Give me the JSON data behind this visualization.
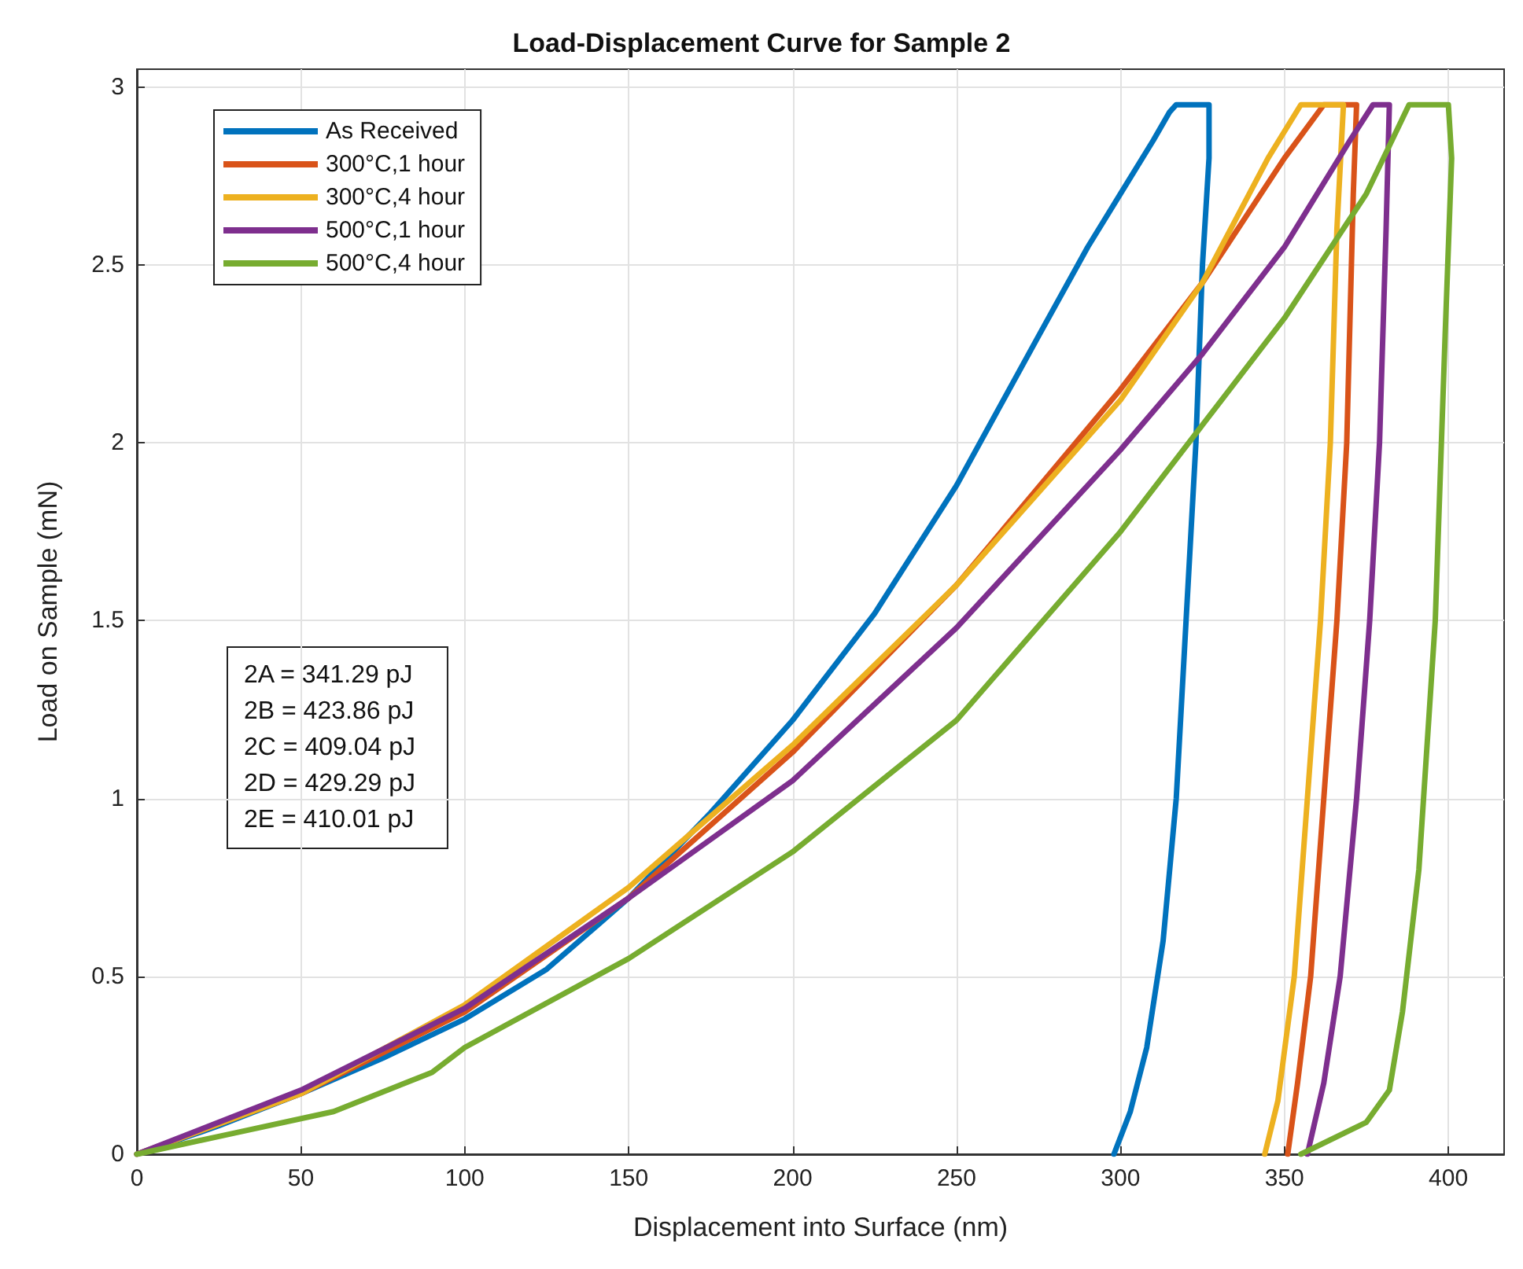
{
  "chart_data": {
    "type": "line",
    "title": "Load-Displacement Curve for Sample 2",
    "xlabel": "Displacement into Surface (nm)",
    "ylabel": "Load on Sample (mN)",
    "xlim": [
      0,
      417
    ],
    "xticks": [
      0,
      50,
      100,
      150,
      200,
      250,
      300,
      350,
      400
    ],
    "ylim": [
      0,
      3.05
    ],
    "yticks": [
      0,
      0.5,
      1,
      1.5,
      2,
      2.5,
      3
    ],
    "grid": true,
    "legend": "top left",
    "marker": "none",
    "line_style": "solid",
    "annotations": [
      "2A = 341.29 pJ",
      "2B = 423.86 pJ",
      "2C = 409.04 pJ",
      "2D = 429.29 pJ",
      "2E = 410.01 pJ"
    ],
    "series": [
      {
        "name": "As Received",
        "color": "#0072bd",
        "x": [
          0,
          25,
          50,
          75,
          100,
          125,
          150,
          175,
          200,
          225,
          250,
          275,
          290,
          300,
          310,
          315,
          317,
          327,
          327,
          325,
          323,
          320,
          317,
          313,
          308,
          303,
          298
        ],
        "values": [
          0,
          0.08,
          0.17,
          0.27,
          0.38,
          0.52,
          0.72,
          0.96,
          1.22,
          1.52,
          1.88,
          2.3,
          2.55,
          2.7,
          2.85,
          2.93,
          2.95,
          2.95,
          2.8,
          2.5,
          2.0,
          1.5,
          1.0,
          0.6,
          0.3,
          0.12,
          0
        ]
      },
      {
        "name": "300°C,1 hour",
        "color": "#d95319",
        "x": [
          0,
          50,
          100,
          150,
          200,
          250,
          300,
          325,
          350,
          362,
          372,
          371,
          369,
          366,
          362,
          358,
          354,
          351
        ],
        "values": [
          0,
          0.17,
          0.4,
          0.72,
          1.13,
          1.6,
          2.15,
          2.45,
          2.8,
          2.95,
          2.95,
          2.7,
          2.0,
          1.5,
          1.0,
          0.5,
          0.2,
          0
        ]
      },
      {
        "name": "300°C,4 hour",
        "color": "#edb120",
        "x": [
          0,
          50,
          100,
          150,
          200,
          250,
          300,
          325,
          345,
          355,
          368,
          366,
          364,
          361,
          357,
          353,
          348,
          344
        ],
        "values": [
          0,
          0.17,
          0.42,
          0.75,
          1.15,
          1.6,
          2.12,
          2.45,
          2.8,
          2.95,
          2.95,
          2.6,
          2.0,
          1.5,
          1.0,
          0.5,
          0.15,
          0
        ]
      },
      {
        "name": "500°C,1 hour",
        "color": "#7e2f8e",
        "x": [
          0,
          50,
          100,
          150,
          200,
          250,
          300,
          325,
          350,
          370,
          377,
          382,
          381,
          379,
          376,
          372,
          367,
          362,
          357
        ],
        "values": [
          0,
          0.18,
          0.41,
          0.72,
          1.05,
          1.48,
          1.98,
          2.25,
          2.55,
          2.85,
          2.95,
          2.95,
          2.6,
          2.0,
          1.5,
          1.0,
          0.5,
          0.2,
          0
        ]
      },
      {
        "name": "500°C,4 hour",
        "color": "#77ac30",
        "x": [
          0,
          30,
          60,
          90,
          100,
          150,
          200,
          250,
          300,
          325,
          350,
          375,
          388,
          400,
          401,
          399,
          396,
          391,
          386,
          382,
          375,
          355
        ],
        "values": [
          0,
          0.06,
          0.12,
          0.23,
          0.3,
          0.55,
          0.85,
          1.22,
          1.75,
          2.05,
          2.35,
          2.7,
          2.95,
          2.95,
          2.8,
          2.3,
          1.5,
          0.8,
          0.4,
          0.18,
          0.09,
          0
        ]
      }
    ]
  }
}
